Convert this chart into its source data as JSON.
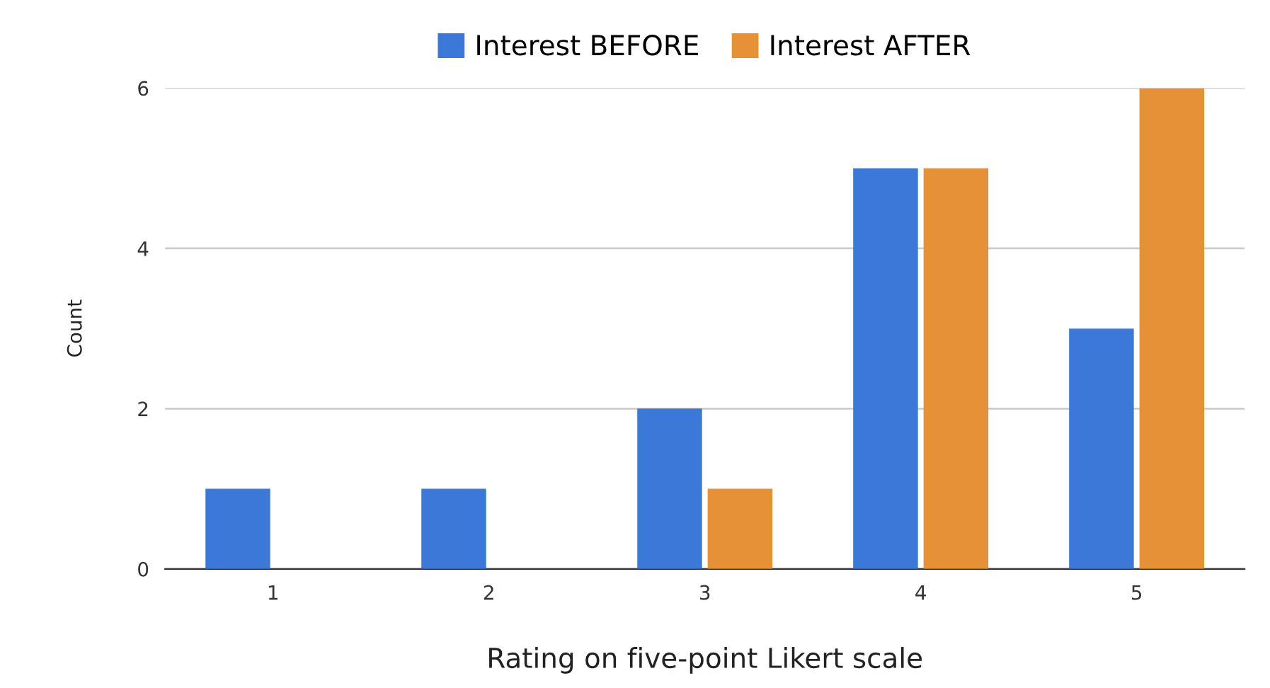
{
  "chart_data": {
    "type": "bar",
    "xlabel": "Rating on five-point Likert scale",
    "ylabel": "Count",
    "categories": [
      "1",
      "2",
      "3",
      "4",
      "5"
    ],
    "series": [
      {
        "name": "Interest BEFORE",
        "color": "#3c78d8",
        "values": [
          1,
          1,
          2,
          5,
          3
        ]
      },
      {
        "name": "Interest AFTER",
        "color": "#e69138",
        "values": [
          0,
          0,
          1,
          5,
          6
        ]
      }
    ],
    "ylim": [
      0,
      6
    ],
    "yticks": [
      0,
      2,
      4,
      6
    ],
    "grid": "y",
    "legend": "top"
  }
}
